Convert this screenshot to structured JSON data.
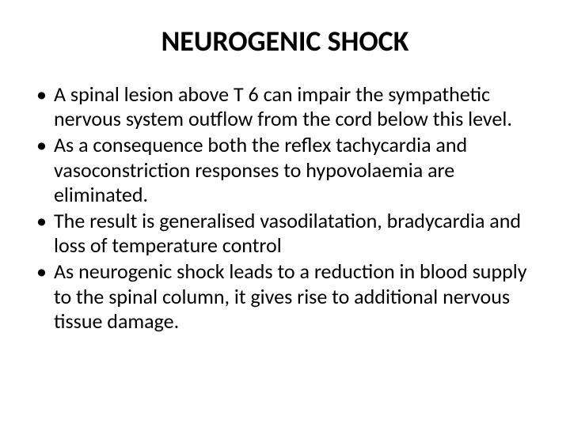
{
  "slide": {
    "title": "NEUROGENIC SHOCK",
    "bullets": [
      "A spinal lesion above T 6 can impair the sympathetic nervous system outflow from the cord below this level.",
      "As a consequence both the reflex tachycardia and vasoconstriction responses to hypovolaemia are eliminated.",
      "The result is generalised vasodilatation, bradycardia and loss of temperature control",
      " As neurogenic shock leads to a reduction in blood supply to the spinal column, it gives rise to additional nervous tissue damage."
    ],
    "styling": {
      "background_color": "#ffffff",
      "title_fontsize": 36,
      "title_weight": "bold",
      "title_color": "#000000",
      "body_fontsize": 26,
      "body_color": "#000000",
      "font_family": "Calibri, Arial, sans-serif",
      "bullet_char": "•"
    }
  }
}
